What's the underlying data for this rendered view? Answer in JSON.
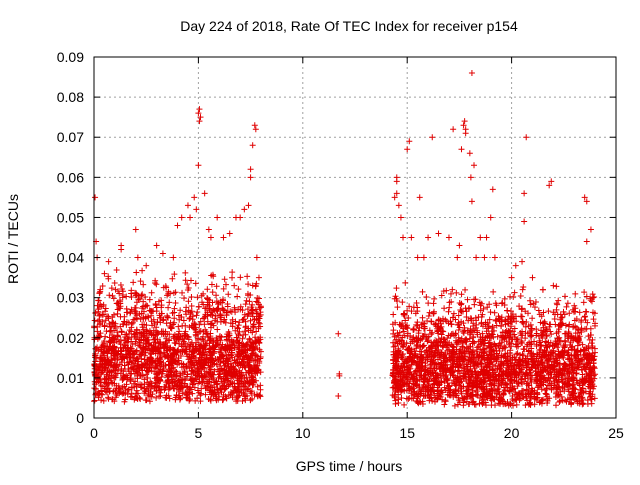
{
  "chart_data": {
    "type": "scatter",
    "title": "Day 224 of 2018, Rate Of TEC Index for receiver p154",
    "xlabel": "GPS time / hours",
    "ylabel": "ROTI / TECUs",
    "xlim": [
      0,
      25
    ],
    "ylim": [
      0,
      0.09
    ],
    "x_ticks": [
      0,
      5,
      10,
      15,
      20,
      25
    ],
    "x_tick_labels": [
      "0",
      "5",
      "10",
      "15",
      "20",
      "25"
    ],
    "y_ticks": [
      0,
      0.01,
      0.02,
      0.03,
      0.04,
      0.05,
      0.06,
      0.07,
      0.08,
      0.09
    ],
    "y_tick_labels": [
      "0",
      "0.01",
      "0.02",
      "0.03",
      "0.04",
      "0.05",
      "0.06",
      "0.07",
      "0.08",
      "0.09"
    ],
    "grid": true,
    "marker": "+",
    "marker_color": "#e00000",
    "frame_color": "#000000",
    "grid_color": "#a0a0a0",
    "bands": [
      {
        "x_range": [
          0,
          8
        ],
        "y_base": [
          0.004,
          0.018
        ],
        "y_spread": 0.02
      },
      {
        "x_range": [
          14.3,
          24
        ],
        "y_base": [
          0.003,
          0.016
        ],
        "y_spread": 0.018
      }
    ],
    "series": [
      {
        "name": "p154",
        "points": [
          [
            0.05,
            0.055
          ],
          [
            0.1,
            0.044
          ],
          [
            0.15,
            0.04
          ],
          [
            0.3,
            0.032
          ],
          [
            0.5,
            0.036
          ],
          [
            0.7,
            0.039
          ],
          [
            1.3,
            0.043
          ],
          [
            1.3,
            0.042
          ],
          [
            2.0,
            0.047
          ],
          [
            2.1,
            0.04
          ],
          [
            2.5,
            0.038
          ],
          [
            3.0,
            0.043
          ],
          [
            3.3,
            0.041
          ],
          [
            3.8,
            0.04
          ],
          [
            4.0,
            0.048
          ],
          [
            4.2,
            0.05
          ],
          [
            4.5,
            0.053
          ],
          [
            4.6,
            0.05
          ],
          [
            4.8,
            0.055
          ],
          [
            4.9,
            0.052
          ],
          [
            5.0,
            0.063
          ],
          [
            5.0,
            0.076
          ],
          [
            5.05,
            0.077
          ],
          [
            5.05,
            0.074
          ],
          [
            5.1,
            0.075
          ],
          [
            5.3,
            0.056
          ],
          [
            5.5,
            0.047
          ],
          [
            5.6,
            0.045
          ],
          [
            5.9,
            0.05
          ],
          [
            6.2,
            0.045
          ],
          [
            6.5,
            0.046
          ],
          [
            6.8,
            0.05
          ],
          [
            7.0,
            0.05
          ],
          [
            7.2,
            0.052
          ],
          [
            7.4,
            0.053
          ],
          [
            7.5,
            0.06
          ],
          [
            7.5,
            0.062
          ],
          [
            7.6,
            0.068
          ],
          [
            7.7,
            0.073
          ],
          [
            7.75,
            0.072
          ],
          [
            7.8,
            0.04
          ],
          [
            7.9,
            0.035
          ],
          [
            11.7,
            0.021
          ],
          [
            11.75,
            0.011
          ],
          [
            11.75,
            0.0105
          ],
          [
            11.7,
            0.0055
          ],
          [
            14.4,
            0.055
          ],
          [
            14.5,
            0.06
          ],
          [
            14.5,
            0.059
          ],
          [
            14.5,
            0.056
          ],
          [
            14.6,
            0.053
          ],
          [
            14.7,
            0.05
          ],
          [
            14.8,
            0.045
          ],
          [
            15.0,
            0.067
          ],
          [
            15.1,
            0.069
          ],
          [
            15.2,
            0.045
          ],
          [
            15.5,
            0.04
          ],
          [
            15.6,
            0.055
          ],
          [
            15.8,
            0.04
          ],
          [
            16.0,
            0.045
          ],
          [
            16.2,
            0.07
          ],
          [
            16.5,
            0.046
          ],
          [
            17.0,
            0.045
          ],
          [
            17.2,
            0.072
          ],
          [
            17.4,
            0.04
          ],
          [
            17.5,
            0.043
          ],
          [
            17.6,
            0.067
          ],
          [
            17.7,
            0.073
          ],
          [
            17.75,
            0.074
          ],
          [
            17.8,
            0.071
          ],
          [
            17.8,
            0.072
          ],
          [
            18.0,
            0.066
          ],
          [
            18.05,
            0.06
          ],
          [
            18.1,
            0.054
          ],
          [
            18.1,
            0.086
          ],
          [
            18.2,
            0.063
          ],
          [
            18.3,
            0.04
          ],
          [
            18.5,
            0.045
          ],
          [
            18.7,
            0.04
          ],
          [
            18.8,
            0.045
          ],
          [
            19.0,
            0.05
          ],
          [
            19.1,
            0.057
          ],
          [
            19.2,
            0.04
          ],
          [
            20.0,
            0.035
          ],
          [
            20.2,
            0.038
          ],
          [
            20.5,
            0.039
          ],
          [
            20.6,
            0.056
          ],
          [
            20.6,
            0.049
          ],
          [
            20.7,
            0.07
          ],
          [
            21.0,
            0.035
          ],
          [
            21.5,
            0.032
          ],
          [
            21.8,
            0.058
          ],
          [
            21.9,
            0.059
          ],
          [
            22.0,
            0.033
          ],
          [
            23.0,
            0.028
          ],
          [
            23.5,
            0.055
          ],
          [
            23.6,
            0.054
          ],
          [
            23.6,
            0.044
          ],
          [
            23.8,
            0.047
          ],
          [
            23.9,
            0.03
          ]
        ]
      }
    ]
  }
}
